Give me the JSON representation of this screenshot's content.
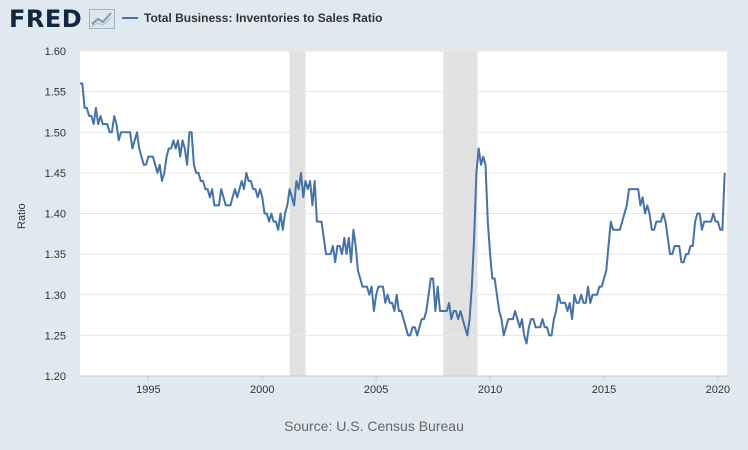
{
  "header": {
    "logo_text": "FRED",
    "logo_icon": "chart-trend-icon",
    "legend_label": "Total Business: Inventories to Sales Ratio"
  },
  "source_text": "Source: U.S. Census Bureau",
  "colors": {
    "line": "#4572a7",
    "recession": "#e1e1e1",
    "grid": "#e6e6e6",
    "background": "#e1e9f0"
  },
  "chart_data": {
    "type": "line",
    "title": "",
    "xlabel": "",
    "ylabel": "Ratio",
    "xlim": [
      1992.0,
      2020.4
    ],
    "ylim": [
      1.2,
      1.6
    ],
    "yticks": [
      "1.20",
      "1.25",
      "1.30",
      "1.35",
      "1.40",
      "1.45",
      "1.50",
      "1.55",
      "1.60"
    ],
    "xticks": [
      "1995",
      "2000",
      "2005",
      "2010",
      "2015",
      "2020"
    ],
    "grid": true,
    "recessions": [
      [
        2001.2,
        2001.9
      ],
      [
        2007.95,
        2009.45
      ]
    ],
    "series": [
      {
        "name": "Total Business: Inventories to Sales Ratio",
        "points": [
          [
            1992.0,
            1.56
          ],
          [
            1992.1,
            1.56
          ],
          [
            1992.2,
            1.53
          ],
          [
            1992.3,
            1.53
          ],
          [
            1992.4,
            1.52
          ],
          [
            1992.5,
            1.52
          ],
          [
            1992.6,
            1.51
          ],
          [
            1992.7,
            1.53
          ],
          [
            1992.8,
            1.51
          ],
          [
            1992.9,
            1.52
          ],
          [
            1993.0,
            1.51
          ],
          [
            1993.1,
            1.51
          ],
          [
            1993.2,
            1.51
          ],
          [
            1993.3,
            1.5
          ],
          [
            1993.4,
            1.5
          ],
          [
            1993.5,
            1.52
          ],
          [
            1993.6,
            1.51
          ],
          [
            1993.7,
            1.49
          ],
          [
            1993.8,
            1.5
          ],
          [
            1993.9,
            1.5
          ],
          [
            1994.0,
            1.5
          ],
          [
            1994.2,
            1.5
          ],
          [
            1994.3,
            1.48
          ],
          [
            1994.4,
            1.49
          ],
          [
            1994.5,
            1.5
          ],
          [
            1994.6,
            1.48
          ],
          [
            1994.7,
            1.47
          ],
          [
            1994.8,
            1.46
          ],
          [
            1994.9,
            1.46
          ],
          [
            1995.0,
            1.47
          ],
          [
            1995.2,
            1.47
          ],
          [
            1995.3,
            1.46
          ],
          [
            1995.4,
            1.45
          ],
          [
            1995.5,
            1.46
          ],
          [
            1995.6,
            1.44
          ],
          [
            1995.7,
            1.45
          ],
          [
            1995.8,
            1.47
          ],
          [
            1995.9,
            1.48
          ],
          [
            1996.0,
            1.48
          ],
          [
            1996.1,
            1.49
          ],
          [
            1996.2,
            1.48
          ],
          [
            1996.3,
            1.49
          ],
          [
            1996.4,
            1.47
          ],
          [
            1996.5,
            1.49
          ],
          [
            1996.6,
            1.48
          ],
          [
            1996.7,
            1.46
          ],
          [
            1996.8,
            1.5
          ],
          [
            1996.9,
            1.5
          ],
          [
            1997.0,
            1.46
          ],
          [
            1997.1,
            1.45
          ],
          [
            1997.2,
            1.45
          ],
          [
            1997.3,
            1.44
          ],
          [
            1997.4,
            1.44
          ],
          [
            1997.5,
            1.43
          ],
          [
            1997.6,
            1.43
          ],
          [
            1997.7,
            1.42
          ],
          [
            1997.8,
            1.43
          ],
          [
            1997.9,
            1.41
          ],
          [
            1998.0,
            1.41
          ],
          [
            1998.1,
            1.41
          ],
          [
            1998.2,
            1.43
          ],
          [
            1998.3,
            1.42
          ],
          [
            1998.4,
            1.41
          ],
          [
            1998.5,
            1.41
          ],
          [
            1998.6,
            1.41
          ],
          [
            1998.7,
            1.42
          ],
          [
            1998.8,
            1.43
          ],
          [
            1998.9,
            1.42
          ],
          [
            1999.0,
            1.43
          ],
          [
            1999.1,
            1.44
          ],
          [
            1999.2,
            1.43
          ],
          [
            1999.3,
            1.45
          ],
          [
            1999.4,
            1.44
          ],
          [
            1999.5,
            1.44
          ],
          [
            1999.6,
            1.43
          ],
          [
            1999.7,
            1.43
          ],
          [
            1999.8,
            1.42
          ],
          [
            1999.9,
            1.43
          ],
          [
            2000.0,
            1.42
          ],
          [
            2000.1,
            1.4
          ],
          [
            2000.2,
            1.4
          ],
          [
            2000.3,
            1.39
          ],
          [
            2000.4,
            1.4
          ],
          [
            2000.5,
            1.39
          ],
          [
            2000.6,
            1.39
          ],
          [
            2000.7,
            1.38
          ],
          [
            2000.8,
            1.4
          ],
          [
            2000.9,
            1.38
          ],
          [
            2001.0,
            1.4
          ],
          [
            2001.1,
            1.41
          ],
          [
            2001.2,
            1.43
          ],
          [
            2001.3,
            1.42
          ],
          [
            2001.4,
            1.41
          ],
          [
            2001.5,
            1.44
          ],
          [
            2001.6,
            1.43
          ],
          [
            2001.7,
            1.45
          ],
          [
            2001.8,
            1.42
          ],
          [
            2001.9,
            1.44
          ],
          [
            2002.0,
            1.43
          ],
          [
            2002.1,
            1.44
          ],
          [
            2002.2,
            1.41
          ],
          [
            2002.3,
            1.44
          ],
          [
            2002.4,
            1.39
          ],
          [
            2002.5,
            1.39
          ],
          [
            2002.6,
            1.39
          ],
          [
            2002.7,
            1.37
          ],
          [
            2002.8,
            1.35
          ],
          [
            2002.9,
            1.35
          ],
          [
            2003.0,
            1.35
          ],
          [
            2003.1,
            1.36
          ],
          [
            2003.2,
            1.34
          ],
          [
            2003.3,
            1.36
          ],
          [
            2003.4,
            1.36
          ],
          [
            2003.5,
            1.35
          ],
          [
            2003.6,
            1.37
          ],
          [
            2003.7,
            1.35
          ],
          [
            2003.8,
            1.37
          ],
          [
            2003.9,
            1.34
          ],
          [
            2004.0,
            1.38
          ],
          [
            2004.1,
            1.36
          ],
          [
            2004.2,
            1.33
          ],
          [
            2004.3,
            1.32
          ],
          [
            2004.4,
            1.31
          ],
          [
            2004.5,
            1.31
          ],
          [
            2004.6,
            1.31
          ],
          [
            2004.7,
            1.3
          ],
          [
            2004.8,
            1.31
          ],
          [
            2004.9,
            1.28
          ],
          [
            2005.0,
            1.3
          ],
          [
            2005.1,
            1.31
          ],
          [
            2005.2,
            1.31
          ],
          [
            2005.3,
            1.31
          ],
          [
            2005.4,
            1.29
          ],
          [
            2005.5,
            1.3
          ],
          [
            2005.6,
            1.29
          ],
          [
            2005.7,
            1.29
          ],
          [
            2005.8,
            1.28
          ],
          [
            2005.9,
            1.3
          ],
          [
            2006.0,
            1.28
          ],
          [
            2006.1,
            1.28
          ],
          [
            2006.2,
            1.27
          ],
          [
            2006.3,
            1.26
          ],
          [
            2006.4,
            1.25
          ],
          [
            2006.5,
            1.25
          ],
          [
            2006.6,
            1.26
          ],
          [
            2006.7,
            1.26
          ],
          [
            2006.8,
            1.25
          ],
          [
            2006.9,
            1.26
          ],
          [
            2007.0,
            1.27
          ],
          [
            2007.1,
            1.27
          ],
          [
            2007.2,
            1.28
          ],
          [
            2007.3,
            1.3
          ],
          [
            2007.4,
            1.32
          ],
          [
            2007.5,
            1.32
          ],
          [
            2007.6,
            1.28
          ],
          [
            2007.7,
            1.31
          ],
          [
            2007.8,
            1.28
          ],
          [
            2007.9,
            1.28
          ],
          [
            2008.0,
            1.28
          ],
          [
            2008.1,
            1.28
          ],
          [
            2008.2,
            1.29
          ],
          [
            2008.3,
            1.27
          ],
          [
            2008.4,
            1.28
          ],
          [
            2008.5,
            1.28
          ],
          [
            2008.6,
            1.27
          ],
          [
            2008.7,
            1.28
          ],
          [
            2008.8,
            1.27
          ],
          [
            2008.9,
            1.26
          ],
          [
            2009.0,
            1.25
          ],
          [
            2009.1,
            1.27
          ],
          [
            2009.2,
            1.31
          ],
          [
            2009.3,
            1.37
          ],
          [
            2009.4,
            1.45
          ],
          [
            2009.5,
            1.48
          ],
          [
            2009.6,
            1.46
          ],
          [
            2009.7,
            1.47
          ],
          [
            2009.8,
            1.46
          ],
          [
            2009.9,
            1.39
          ],
          [
            2010.0,
            1.35
          ],
          [
            2010.1,
            1.32
          ],
          [
            2010.2,
            1.32
          ],
          [
            2010.3,
            1.3
          ],
          [
            2010.4,
            1.28
          ],
          [
            2010.5,
            1.27
          ],
          [
            2010.6,
            1.25
          ],
          [
            2010.7,
            1.26
          ],
          [
            2010.8,
            1.27
          ],
          [
            2010.9,
            1.27
          ],
          [
            2011.0,
            1.27
          ],
          [
            2011.1,
            1.28
          ],
          [
            2011.2,
            1.27
          ],
          [
            2011.3,
            1.26
          ],
          [
            2011.4,
            1.27
          ],
          [
            2011.5,
            1.25
          ],
          [
            2011.6,
            1.24
          ],
          [
            2011.7,
            1.26
          ],
          [
            2011.8,
            1.27
          ],
          [
            2011.9,
            1.27
          ],
          [
            2012.0,
            1.26
          ],
          [
            2012.1,
            1.26
          ],
          [
            2012.2,
            1.26
          ],
          [
            2012.3,
            1.27
          ],
          [
            2012.4,
            1.26
          ],
          [
            2012.5,
            1.26
          ],
          [
            2012.6,
            1.25
          ],
          [
            2012.7,
            1.25
          ],
          [
            2012.8,
            1.27
          ],
          [
            2012.9,
            1.28
          ],
          [
            2013.0,
            1.3
          ],
          [
            2013.1,
            1.29
          ],
          [
            2013.2,
            1.29
          ],
          [
            2013.3,
            1.29
          ],
          [
            2013.4,
            1.28
          ],
          [
            2013.5,
            1.29
          ],
          [
            2013.6,
            1.27
          ],
          [
            2013.7,
            1.3
          ],
          [
            2013.8,
            1.29
          ],
          [
            2013.9,
            1.29
          ],
          [
            2014.0,
            1.3
          ],
          [
            2014.1,
            1.29
          ],
          [
            2014.2,
            1.29
          ],
          [
            2014.3,
            1.31
          ],
          [
            2014.4,
            1.29
          ],
          [
            2014.5,
            1.3
          ],
          [
            2014.6,
            1.3
          ],
          [
            2014.7,
            1.3
          ],
          [
            2014.8,
            1.31
          ],
          [
            2014.9,
            1.31
          ],
          [
            2015.0,
            1.32
          ],
          [
            2015.1,
            1.33
          ],
          [
            2015.2,
            1.36
          ],
          [
            2015.3,
            1.39
          ],
          [
            2015.4,
            1.38
          ],
          [
            2015.5,
            1.38
          ],
          [
            2015.6,
            1.38
          ],
          [
            2015.7,
            1.38
          ],
          [
            2015.8,
            1.39
          ],
          [
            2015.9,
            1.4
          ],
          [
            2016.0,
            1.41
          ],
          [
            2016.1,
            1.43
          ],
          [
            2016.2,
            1.43
          ],
          [
            2016.3,
            1.43
          ],
          [
            2016.4,
            1.43
          ],
          [
            2016.5,
            1.43
          ],
          [
            2016.6,
            1.41
          ],
          [
            2016.7,
            1.42
          ],
          [
            2016.8,
            1.4
          ],
          [
            2016.9,
            1.41
          ],
          [
            2017.0,
            1.4
          ],
          [
            2017.1,
            1.38
          ],
          [
            2017.2,
            1.38
          ],
          [
            2017.3,
            1.39
          ],
          [
            2017.4,
            1.39
          ],
          [
            2017.5,
            1.39
          ],
          [
            2017.6,
            1.4
          ],
          [
            2017.7,
            1.39
          ],
          [
            2017.8,
            1.37
          ],
          [
            2017.9,
            1.35
          ],
          [
            2018.0,
            1.35
          ],
          [
            2018.1,
            1.36
          ],
          [
            2018.2,
            1.36
          ],
          [
            2018.3,
            1.36
          ],
          [
            2018.4,
            1.34
          ],
          [
            2018.5,
            1.34
          ],
          [
            2018.6,
            1.35
          ],
          [
            2018.7,
            1.35
          ],
          [
            2018.8,
            1.36
          ],
          [
            2018.9,
            1.36
          ],
          [
            2019.0,
            1.39
          ],
          [
            2019.1,
            1.4
          ],
          [
            2019.2,
            1.4
          ],
          [
            2019.3,
            1.38
          ],
          [
            2019.4,
            1.39
          ],
          [
            2019.5,
            1.39
          ],
          [
            2019.6,
            1.39
          ],
          [
            2019.7,
            1.39
          ],
          [
            2019.8,
            1.4
          ],
          [
            2019.9,
            1.39
          ],
          [
            2020.0,
            1.39
          ],
          [
            2020.1,
            1.38
          ],
          [
            2020.2,
            1.38
          ],
          [
            2020.3,
            1.45
          ]
        ]
      }
    ]
  }
}
